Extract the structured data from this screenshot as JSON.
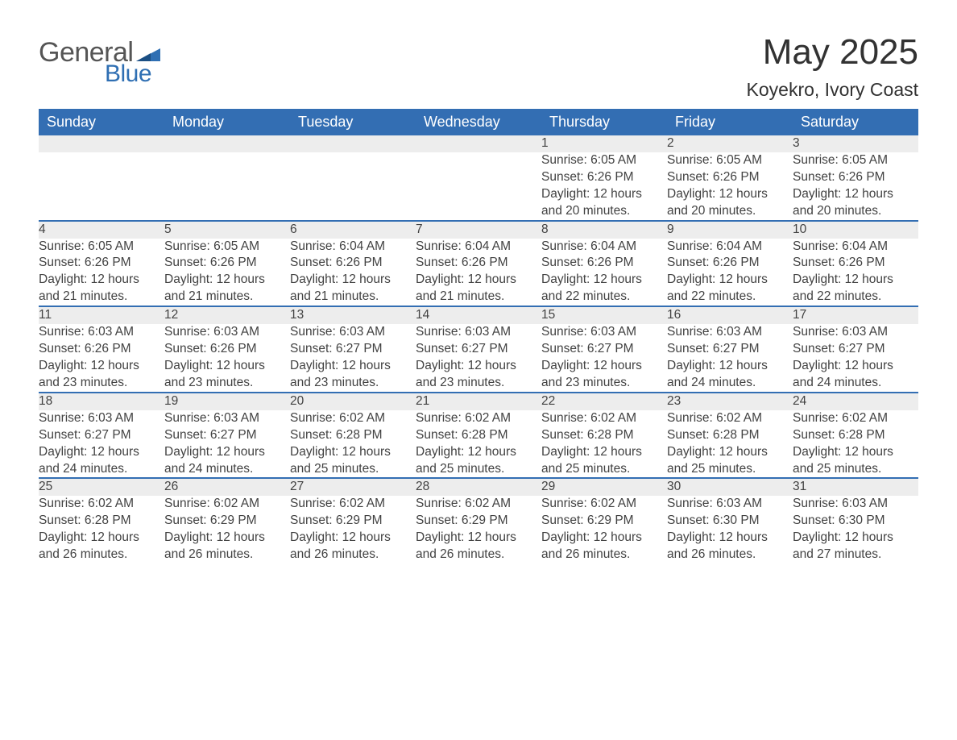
{
  "logo": {
    "text1": "General",
    "text2": "Blue"
  },
  "title": "May 2025",
  "location": "Koyekro, Ivory Coast",
  "colors": {
    "header_bg": "#336eb3",
    "header_text": "#ffffff",
    "daynum_bg": "#ededed",
    "row_border": "#336eb3",
    "body_text": "#424242",
    "logo_gray": "#555555",
    "logo_blue": "#2f6fb3"
  },
  "weekdays": [
    "Sunday",
    "Monday",
    "Tuesday",
    "Wednesday",
    "Thursday",
    "Friday",
    "Saturday"
  ],
  "weeks": [
    [
      null,
      null,
      null,
      null,
      {
        "n": "1",
        "sr": "Sunrise: 6:05 AM",
        "ss": "Sunset: 6:26 PM",
        "d1": "Daylight: 12 hours",
        "d2": "and 20 minutes."
      },
      {
        "n": "2",
        "sr": "Sunrise: 6:05 AM",
        "ss": "Sunset: 6:26 PM",
        "d1": "Daylight: 12 hours",
        "d2": "and 20 minutes."
      },
      {
        "n": "3",
        "sr": "Sunrise: 6:05 AM",
        "ss": "Sunset: 6:26 PM",
        "d1": "Daylight: 12 hours",
        "d2": "and 20 minutes."
      }
    ],
    [
      {
        "n": "4",
        "sr": "Sunrise: 6:05 AM",
        "ss": "Sunset: 6:26 PM",
        "d1": "Daylight: 12 hours",
        "d2": "and 21 minutes."
      },
      {
        "n": "5",
        "sr": "Sunrise: 6:05 AM",
        "ss": "Sunset: 6:26 PM",
        "d1": "Daylight: 12 hours",
        "d2": "and 21 minutes."
      },
      {
        "n": "6",
        "sr": "Sunrise: 6:04 AM",
        "ss": "Sunset: 6:26 PM",
        "d1": "Daylight: 12 hours",
        "d2": "and 21 minutes."
      },
      {
        "n": "7",
        "sr": "Sunrise: 6:04 AM",
        "ss": "Sunset: 6:26 PM",
        "d1": "Daylight: 12 hours",
        "d2": "and 21 minutes."
      },
      {
        "n": "8",
        "sr": "Sunrise: 6:04 AM",
        "ss": "Sunset: 6:26 PM",
        "d1": "Daylight: 12 hours",
        "d2": "and 22 minutes."
      },
      {
        "n": "9",
        "sr": "Sunrise: 6:04 AM",
        "ss": "Sunset: 6:26 PM",
        "d1": "Daylight: 12 hours",
        "d2": "and 22 minutes."
      },
      {
        "n": "10",
        "sr": "Sunrise: 6:04 AM",
        "ss": "Sunset: 6:26 PM",
        "d1": "Daylight: 12 hours",
        "d2": "and 22 minutes."
      }
    ],
    [
      {
        "n": "11",
        "sr": "Sunrise: 6:03 AM",
        "ss": "Sunset: 6:26 PM",
        "d1": "Daylight: 12 hours",
        "d2": "and 23 minutes."
      },
      {
        "n": "12",
        "sr": "Sunrise: 6:03 AM",
        "ss": "Sunset: 6:26 PM",
        "d1": "Daylight: 12 hours",
        "d2": "and 23 minutes."
      },
      {
        "n": "13",
        "sr": "Sunrise: 6:03 AM",
        "ss": "Sunset: 6:27 PM",
        "d1": "Daylight: 12 hours",
        "d2": "and 23 minutes."
      },
      {
        "n": "14",
        "sr": "Sunrise: 6:03 AM",
        "ss": "Sunset: 6:27 PM",
        "d1": "Daylight: 12 hours",
        "d2": "and 23 minutes."
      },
      {
        "n": "15",
        "sr": "Sunrise: 6:03 AM",
        "ss": "Sunset: 6:27 PM",
        "d1": "Daylight: 12 hours",
        "d2": "and 23 minutes."
      },
      {
        "n": "16",
        "sr": "Sunrise: 6:03 AM",
        "ss": "Sunset: 6:27 PM",
        "d1": "Daylight: 12 hours",
        "d2": "and 24 minutes."
      },
      {
        "n": "17",
        "sr": "Sunrise: 6:03 AM",
        "ss": "Sunset: 6:27 PM",
        "d1": "Daylight: 12 hours",
        "d2": "and 24 minutes."
      }
    ],
    [
      {
        "n": "18",
        "sr": "Sunrise: 6:03 AM",
        "ss": "Sunset: 6:27 PM",
        "d1": "Daylight: 12 hours",
        "d2": "and 24 minutes."
      },
      {
        "n": "19",
        "sr": "Sunrise: 6:03 AM",
        "ss": "Sunset: 6:27 PM",
        "d1": "Daylight: 12 hours",
        "d2": "and 24 minutes."
      },
      {
        "n": "20",
        "sr": "Sunrise: 6:02 AM",
        "ss": "Sunset: 6:28 PM",
        "d1": "Daylight: 12 hours",
        "d2": "and 25 minutes."
      },
      {
        "n": "21",
        "sr": "Sunrise: 6:02 AM",
        "ss": "Sunset: 6:28 PM",
        "d1": "Daylight: 12 hours",
        "d2": "and 25 minutes."
      },
      {
        "n": "22",
        "sr": "Sunrise: 6:02 AM",
        "ss": "Sunset: 6:28 PM",
        "d1": "Daylight: 12 hours",
        "d2": "and 25 minutes."
      },
      {
        "n": "23",
        "sr": "Sunrise: 6:02 AM",
        "ss": "Sunset: 6:28 PM",
        "d1": "Daylight: 12 hours",
        "d2": "and 25 minutes."
      },
      {
        "n": "24",
        "sr": "Sunrise: 6:02 AM",
        "ss": "Sunset: 6:28 PM",
        "d1": "Daylight: 12 hours",
        "d2": "and 25 minutes."
      }
    ],
    [
      {
        "n": "25",
        "sr": "Sunrise: 6:02 AM",
        "ss": "Sunset: 6:28 PM",
        "d1": "Daylight: 12 hours",
        "d2": "and 26 minutes."
      },
      {
        "n": "26",
        "sr": "Sunrise: 6:02 AM",
        "ss": "Sunset: 6:29 PM",
        "d1": "Daylight: 12 hours",
        "d2": "and 26 minutes."
      },
      {
        "n": "27",
        "sr": "Sunrise: 6:02 AM",
        "ss": "Sunset: 6:29 PM",
        "d1": "Daylight: 12 hours",
        "d2": "and 26 minutes."
      },
      {
        "n": "28",
        "sr": "Sunrise: 6:02 AM",
        "ss": "Sunset: 6:29 PM",
        "d1": "Daylight: 12 hours",
        "d2": "and 26 minutes."
      },
      {
        "n": "29",
        "sr": "Sunrise: 6:02 AM",
        "ss": "Sunset: 6:29 PM",
        "d1": "Daylight: 12 hours",
        "d2": "and 26 minutes."
      },
      {
        "n": "30",
        "sr": "Sunrise: 6:03 AM",
        "ss": "Sunset: 6:30 PM",
        "d1": "Daylight: 12 hours",
        "d2": "and 26 minutes."
      },
      {
        "n": "31",
        "sr": "Sunrise: 6:03 AM",
        "ss": "Sunset: 6:30 PM",
        "d1": "Daylight: 12 hours",
        "d2": "and 27 minutes."
      }
    ]
  ]
}
